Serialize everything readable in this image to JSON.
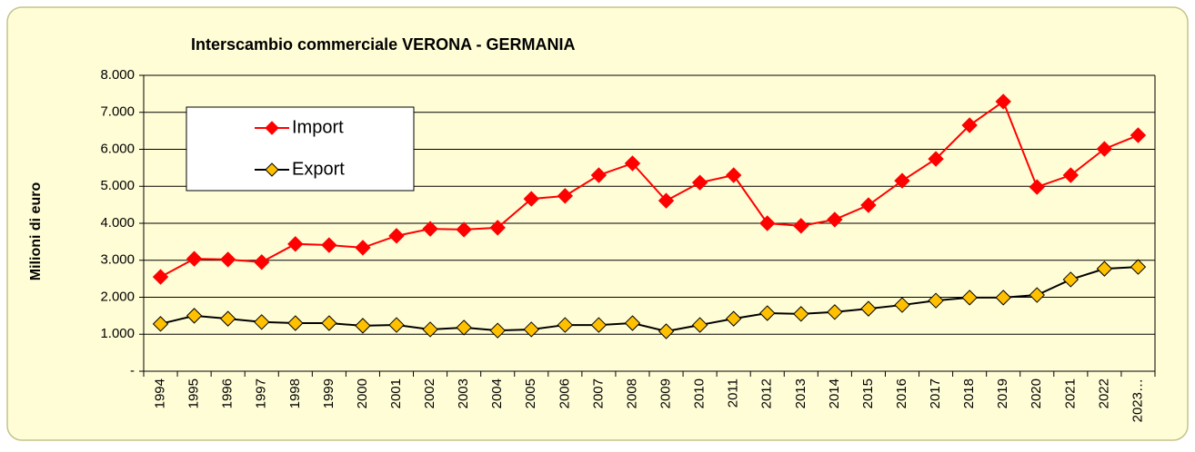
{
  "chart_data": {
    "type": "line",
    "title": "Interscambio commerciale VERONA - GERMANIA",
    "y_label": "Milioni di euro",
    "categories": [
      "1994",
      "1995",
      "1996",
      "1997",
      "1998",
      "1999",
      "2000",
      "2001",
      "2002",
      "2003",
      "2004",
      "2005",
      "2006",
      "2007",
      "2008",
      "2009",
      "2010",
      "2011",
      "2012",
      "2013",
      "2014",
      "2015",
      "2016",
      "2017",
      "2018",
      "2019",
      "2020",
      "2021",
      "2022",
      "2023…"
    ],
    "series": [
      {
        "name": "Import",
        "color": "#ff0000",
        "line_color": "#ff0000",
        "values": [
          2550,
          3040,
          3020,
          2950,
          3440,
          3410,
          3340,
          3660,
          3850,
          3830,
          3880,
          4660,
          4740,
          5300,
          5620,
          4610,
          5100,
          5300,
          4000,
          3930,
          4100,
          4490,
          5150,
          5740,
          6650,
          7290,
          4980,
          5300,
          6010,
          6380
        ]
      },
      {
        "name": "Export",
        "color": "#ffc000",
        "line_color": "#000000",
        "values": [
          1280,
          1500,
          1420,
          1330,
          1300,
          1300,
          1230,
          1250,
          1130,
          1180,
          1100,
          1130,
          1250,
          1250,
          1300,
          1080,
          1250,
          1420,
          1570,
          1550,
          1600,
          1690,
          1790,
          1910,
          1990,
          1990,
          2060,
          2480,
          2770,
          2820
        ]
      }
    ],
    "ylim": [
      0,
      8000
    ],
    "yticks": [
      {
        "value": 0,
        "label": "-"
      },
      {
        "value": 1000,
        "label": "1.000"
      },
      {
        "value": 2000,
        "label": "2.000"
      },
      {
        "value": 3000,
        "label": "3.000"
      },
      {
        "value": 4000,
        "label": "4.000"
      },
      {
        "value": 5000,
        "label": "5.000"
      },
      {
        "value": 6000,
        "label": "6.000"
      },
      {
        "value": 7000,
        "label": "7.000"
      },
      {
        "value": 8000,
        "label": "8.000"
      }
    ],
    "grid": true
  }
}
